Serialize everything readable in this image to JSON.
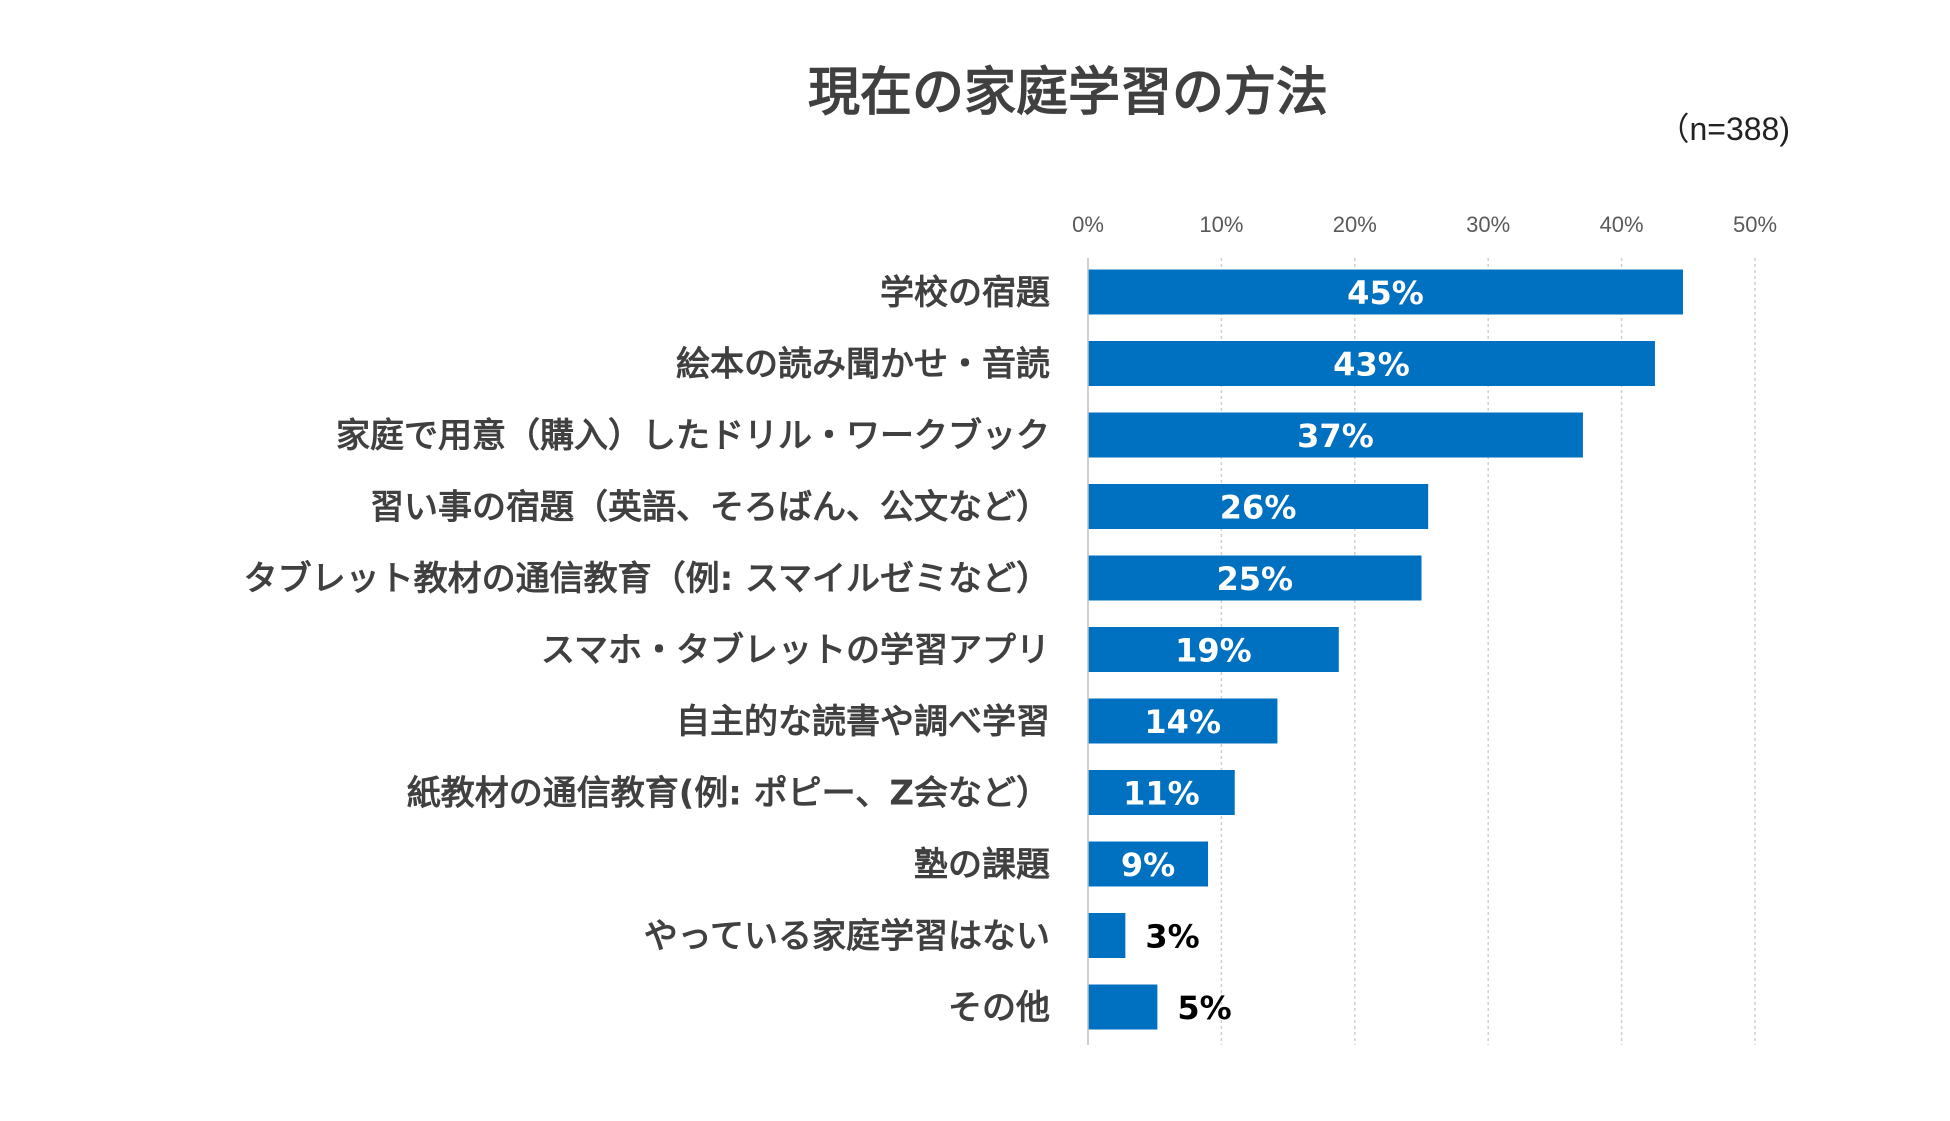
{
  "chart_data": {
    "type": "bar",
    "orientation": "horizontal",
    "title": "現在の家庭学習の方法",
    "sample_note": "（n=388)",
    "x_ticks": [
      "0%",
      "10%",
      "20%",
      "30%",
      "40%",
      "50%"
    ],
    "xlim": [
      0,
      50
    ],
    "grid": true,
    "categories": [
      "学校の宿題",
      "絵本の読み聞かせ・音読",
      "家庭で用意（購入）したドリル・ワークブック",
      "習い事の宿題（英語、そろばん、公文など）",
      "タブレット教材の通信教育（例: スマイルゼミなど）",
      "スマホ・タブレットの学習アプリ",
      "自主的な読書や調べ学習",
      "紙教材の通信教育(例: ポピー、Z会など）",
      "塾の課題",
      "やっている家庭学習はない",
      "その他"
    ],
    "values": [
      44.6,
      42.5,
      37.1,
      25.5,
      25.0,
      18.8,
      14.2,
      11.0,
      9.0,
      2.8,
      5.2
    ],
    "value_labels": [
      "45%",
      "43%",
      "37%",
      "26%",
      "25%",
      "19%",
      "14%",
      "11%",
      "9%",
      "3%",
      "5%"
    ],
    "bar_color": "#0070C0",
    "label_color_inside": "#ffffff",
    "label_color_outside": "#000000"
  }
}
